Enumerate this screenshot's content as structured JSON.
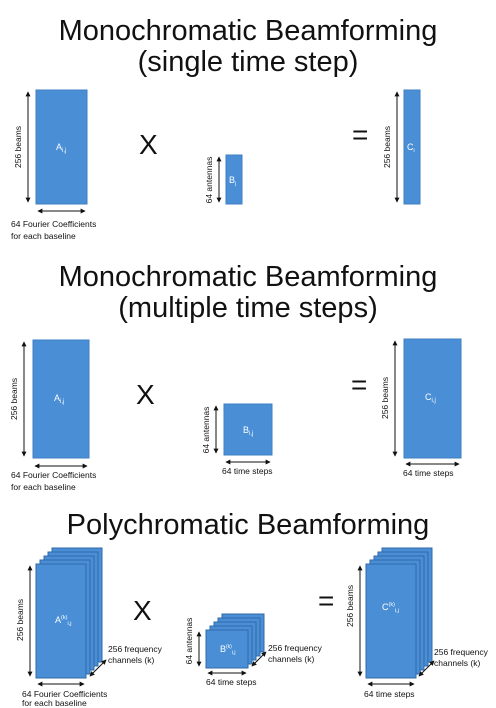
{
  "sections": [
    {
      "title_line1": "Monochromatic Beamforming",
      "title_line2": "(single time step)",
      "matrix_a": {
        "label_main": "A",
        "label_sub": "i,j",
        "rows_label": "256 beams",
        "cols_label_line1": "64 Fourier Coefficients",
        "cols_label_line2": "for each baseline"
      },
      "operator_multiply": "X",
      "matrix_b": {
        "label_main": "B",
        "label_sub": "j",
        "rows_label": "64 antennas"
      },
      "operator_equals": "=",
      "matrix_c": {
        "label_main": "C",
        "label_sub": "i",
        "rows_label": "256 beams"
      }
    },
    {
      "title_line1": "Monochromatic Beamforming",
      "title_line2": "(multiple time steps)",
      "matrix_a": {
        "label_main": "A",
        "label_sub": "i,j",
        "rows_label": "256 beams",
        "cols_label_line1": "64 Fourier Coefficients",
        "cols_label_line2": "for each baseline"
      },
      "operator_multiply": "X",
      "matrix_b": {
        "label_main": "B",
        "label_sub": "i,j",
        "rows_label": "64 antennas",
        "cols_label": "64 time steps"
      },
      "operator_equals": "=",
      "matrix_c": {
        "label_main": "C",
        "label_sub": "i,j",
        "rows_label": "256 beams",
        "cols_label": "64 time steps"
      }
    },
    {
      "title_line1": "Polychromatic Beamforming",
      "matrix_a": {
        "label_main": "A",
        "label_sup": "(k)",
        "label_sub": "i,j",
        "rows_label": "256 beams",
        "cols_label_line1": "64 Fourier Coefficients",
        "cols_label_line2": "for each baseline",
        "depth_label_line1": "256 frequency",
        "depth_label_line2": "channels (k)"
      },
      "operator_multiply": "X",
      "matrix_b": {
        "label_main": "B",
        "label_sup": "(k)",
        "label_sub": "i,j",
        "rows_label": "64 antennas",
        "cols_label": "64 time steps",
        "depth_label_line1": "256 frequency",
        "depth_label_line2": "channels (k)"
      },
      "operator_equals": "=",
      "matrix_c": {
        "label_main": "C",
        "label_sup": "(k)",
        "label_sub": "i,j",
        "rows_label": "256 beams",
        "cols_label": "64 time steps",
        "depth_label_line1": "256 frequency",
        "depth_label_line2": "channels (k)"
      }
    }
  ],
  "colors": {
    "matrix_fill": "#4a8fd6",
    "matrix_stroke": "#3f7fc2",
    "stack_stroke": "#2f6aa8",
    "text": "#111111"
  }
}
